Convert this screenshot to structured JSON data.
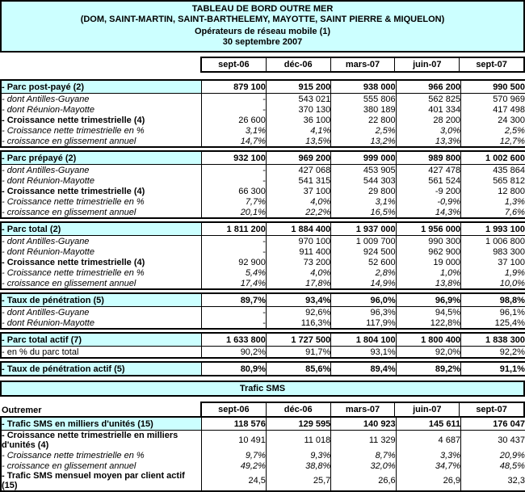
{
  "colors": {
    "accent_bg": "#CCFFFF",
    "border": "#000000",
    "page_bg": "#FFFFFF",
    "text": "#000000"
  },
  "title": {
    "line1": "TABLEAU DE BORD OUTRE MER",
    "line2": "(DOM, SAINT-MARTIN, SAINT-BARTHELEMY, MAYOTTE, SAINT PIERRE & MIQUELON)",
    "line3": "Opérateurs de réseau mobile (1)",
    "line4": "30 septembre 2007"
  },
  "main_table": {
    "columns": [
      "sept-06",
      "déc-06",
      "mars-07",
      "juin-07",
      "sept-07"
    ],
    "sections": [
      {
        "name": "parc-post-paye",
        "rows": [
          {
            "label": "- Parc post-payé (2)",
            "style": "header",
            "values": [
              "879 100",
              "915 200",
              "938 000",
              "966 200",
              "990 500"
            ]
          },
          {
            "label": "- dont Antilles-Guyane",
            "style": "italic_label",
            "values": [
              "-",
              "543 021",
              "555 806",
              "562 825",
              "570 969"
            ]
          },
          {
            "label": "- dont Réunion-Mayotte",
            "style": "italic_label",
            "values": [
              "-",
              "370 130",
              "380 189",
              "401 334",
              "417 498"
            ]
          },
          {
            "label": "- Croissance nette trimestrielle (4)",
            "style": "bold_label",
            "values": [
              "26 600",
              "36 100",
              "22 800",
              "28 200",
              "24 300"
            ]
          },
          {
            "label": "- Croissance nette trimestrielle en %",
            "style": "italic",
            "values": [
              "3,1%",
              "4,1%",
              "2,5%",
              "3,0%",
              "2,5%"
            ]
          },
          {
            "label": "- croissance en glissement annuel",
            "style": "italic",
            "values": [
              "14,7%",
              "13,5%",
              "13,2%",
              "13,3%",
              "12,7%"
            ]
          }
        ]
      },
      {
        "name": "parc-prepaye",
        "rows": [
          {
            "label": "- Parc prépayé (2)",
            "style": "header",
            "values": [
              "932 100",
              "969 200",
              "999 000",
              "989 800",
              "1 002 600"
            ]
          },
          {
            "label": "- dont Antilles-Guyane",
            "style": "italic_label",
            "values": [
              "-",
              "427 068",
              "453 905",
              "427 478",
              "435 864"
            ]
          },
          {
            "label": "- dont Réunion-Mayotte",
            "style": "italic_label",
            "values": [
              "-",
              "541 315",
              "544 303",
              "561 524",
              "565 812"
            ]
          },
          {
            "label": "- Croissance nette trimestrielle (4)",
            "style": "bold_label",
            "values": [
              "66 300",
              "37 100",
              "29 800",
              "-9 200",
              "12 800"
            ]
          },
          {
            "label": "- Croissance nette trimestrielle en %",
            "style": "italic",
            "values": [
              "7,7%",
              "4,0%",
              "3,1%",
              "-0,9%",
              "1,3%"
            ]
          },
          {
            "label": "- croissance en glissement annuel",
            "style": "italic",
            "values": [
              "20,1%",
              "22,2%",
              "16,5%",
              "14,3%",
              "7,6%"
            ]
          }
        ]
      },
      {
        "name": "parc-total",
        "rows": [
          {
            "label": "- Parc total (2)",
            "style": "header",
            "values": [
              "1 811 200",
              "1 884 400",
              "1 937 000",
              "1 956 000",
              "1 993 100"
            ]
          },
          {
            "label": "- dont Antilles-Guyane",
            "style": "italic_label",
            "values": [
              "-",
              "970 100",
              "1 009 700",
              "990 300",
              "1 006 800"
            ]
          },
          {
            "label": "- dont Réunion-Mayotte",
            "style": "italic_label",
            "values": [
              "-",
              "911 400",
              "924 500",
              "962 900",
              "983 300"
            ]
          },
          {
            "label": "- Croissance nette trimestrielle (4)",
            "style": "bold_label",
            "values": [
              "92 900",
              "73 200",
              "52 600",
              "19 000",
              "37 100"
            ]
          },
          {
            "label": "- Croissance nette trimestrielle en %",
            "style": "italic",
            "values": [
              "5,4%",
              "4,0%",
              "2,8%",
              "1,0%",
              "1,9%"
            ]
          },
          {
            "label": "- croissance en glissement annuel",
            "style": "italic",
            "values": [
              "17,4%",
              "17,8%",
              "14,9%",
              "13,8%",
              "10,0%"
            ]
          }
        ]
      },
      {
        "name": "taux-de-penetration",
        "rows": [
          {
            "label": "- Taux de pénétration (5)",
            "style": "header",
            "values": [
              "89,7%",
              "93,4%",
              "96,0%",
              "96,9%",
              "98,8%"
            ]
          },
          {
            "label": "- dont Antilles-Guyane",
            "style": "italic_label",
            "values": [
              "-",
              "92,6%",
              "96,3%",
              "94,5%",
              "96,1%"
            ]
          },
          {
            "label": "- dont Réunion-Mayotte",
            "style": "italic_label",
            "values": [
              "-",
              "116,3%",
              "117,9%",
              "122,8%",
              "125,4%"
            ]
          }
        ]
      },
      {
        "name": "parc-total-actif",
        "rows": [
          {
            "label": "- Parc total actif (7)",
            "style": "header",
            "values": [
              "1 633 800",
              "1 727 500",
              "1 804 100",
              "1 800 400",
              "1 838 300"
            ]
          },
          {
            "label": "- en % du parc total",
            "style": "plain",
            "values": [
              "90,2%",
              "91,7%",
              "93,1%",
              "92,0%",
              "92,2%"
            ]
          }
        ]
      },
      {
        "name": "taux-de-penetration-actif",
        "rows": [
          {
            "label": "- Taux de pénétration actif (5)",
            "style": "header",
            "values": [
              "80,9%",
              "85,6%",
              "89,4%",
              "89,2%",
              "91,1%"
            ]
          }
        ]
      }
    ]
  },
  "sms": {
    "banner": "Trafic SMS",
    "corner_label": "Outremer",
    "columns": [
      "sept-06",
      "déc-06",
      "mars-07",
      "juin-07",
      "sept-07"
    ],
    "rows": [
      {
        "label": "- Trafic SMS en milliers d'unités (15)",
        "style": "header",
        "values": [
          "118 576",
          "129 595",
          "140 923",
          "145 611",
          "176 047"
        ]
      },
      {
        "label": "- Croissance nette trimestrielle en milliers d'unités (4)",
        "style": "bold_label",
        "values": [
          "10 491",
          "11 018",
          "11 329",
          "4 687",
          "30 437"
        ]
      },
      {
        "label": "- Croissance nette trimestrielle en %",
        "style": "italic",
        "values": [
          "9,7%",
          "9,3%",
          "8,7%",
          "3,3%",
          "20,9%"
        ]
      },
      {
        "label": "- croissance en glissement annuel",
        "style": "italic",
        "values": [
          "49,2%",
          "38,8%",
          "32,0%",
          "34,7%",
          "48,5%"
        ]
      },
      {
        "label": "- Trafic SMS mensuel moyen par client actif (15)",
        "style": "bold_label",
        "values": [
          "24,5",
          "25,7",
          "26,6",
          "26,9",
          "32,3"
        ]
      }
    ]
  }
}
